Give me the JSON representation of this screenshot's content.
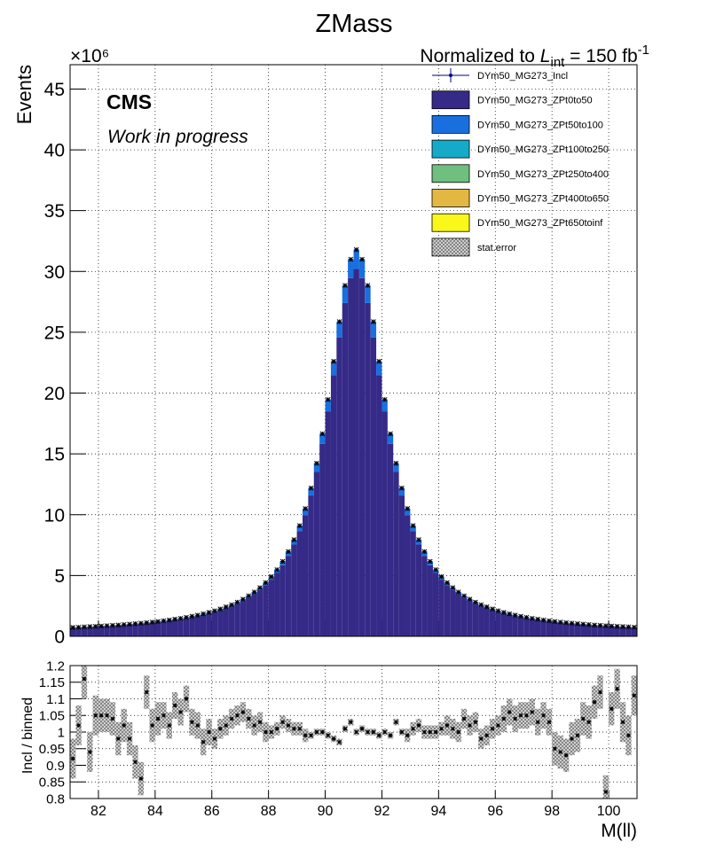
{
  "chart_data": [
    {
      "type": "stacked_histogram",
      "title": "ZMass",
      "y_label": "Events",
      "y_multiplier": "×10⁶",
      "lumi": {
        "prefix": "Normalized to ",
        "symbol": "L",
        "subscript": "int",
        "suffix": " = 150 fb",
        "superscript": "-1"
      },
      "annotations": [
        "CMS",
        "Work in progress"
      ],
      "bins": [
        81,
        81.2,
        81.4,
        81.6,
        81.8,
        82,
        82.2,
        82.4,
        82.6,
        82.8,
        83,
        83.2,
        83.4,
        83.6,
        83.8,
        84,
        84.2,
        84.4,
        84.6,
        84.8,
        85,
        85.2,
        85.4,
        85.6,
        85.8,
        86,
        86.2,
        86.4,
        86.6,
        86.8,
        87,
        87.2,
        87.4,
        87.6,
        87.8,
        88,
        88.2,
        88.4,
        88.6,
        88.8,
        89,
        89.2,
        89.4,
        89.6,
        89.8,
        90,
        90.2,
        90.4,
        90.6,
        90.8,
        91,
        91.2,
        91.4,
        91.6,
        91.8,
        92,
        92.2,
        92.4,
        92.6,
        92.8,
        93,
        93.2,
        93.4,
        93.6,
        93.8,
        94,
        94.2,
        94.4,
        94.6,
        94.8,
        95,
        95.2,
        95.4,
        95.6,
        95.8,
        96,
        96.2,
        96.4,
        96.6,
        96.8,
        97,
        97.2,
        97.4,
        97.6,
        97.8,
        98,
        98.2,
        98.4,
        98.6,
        98.8,
        99,
        99.2,
        99.4,
        99.6,
        99.8,
        100,
        100.2,
        100.4,
        100.6,
        100.8,
        101
      ],
      "xlim": [
        81,
        101
      ],
      "xticks": [
        82,
        84,
        86,
        88,
        90,
        92,
        94,
        96,
        98,
        100
      ],
      "ylim": [
        0,
        47
      ],
      "yticks": [
        0,
        5,
        10,
        15,
        20,
        25,
        30,
        35,
        40,
        45
      ],
      "grid": true,
      "series": [
        {
          "name": "DYm50_MG273_ZPt0to50",
          "color": "#352a87",
          "values": [
            0.69,
            0.71,
            0.74,
            0.76,
            0.78,
            0.81,
            0.83,
            0.85,
            0.88,
            0.92,
            0.95,
            0.99,
            1.03,
            1.06,
            1.11,
            1.16,
            1.22,
            1.27,
            1.34,
            1.41,
            1.48,
            1.57,
            1.65,
            1.76,
            1.87,
            1.99,
            2.14,
            2.3,
            2.47,
            2.67,
            2.9,
            3.16,
            3.46,
            3.8,
            4.2,
            4.66,
            5.21,
            5.85,
            6.62,
            7.54,
            8.64,
            9.97,
            11.58,
            13.52,
            15.82,
            18.5,
            21.48,
            24.58,
            27.41,
            29.45,
            30.2,
            29.45,
            27.41,
            24.58,
            21.48,
            18.5,
            15.82,
            13.52,
            11.58,
            9.97,
            8.64,
            7.54,
            6.62,
            5.85,
            5.21,
            4.66,
            4.2,
            3.8,
            3.46,
            3.16,
            2.9,
            2.67,
            2.47,
            2.3,
            2.14,
            1.99,
            1.87,
            1.76,
            1.65,
            1.57,
            1.48,
            1.41,
            1.34,
            1.27,
            1.22,
            1.16,
            1.11,
            1.06,
            1.03,
            0.99,
            0.95,
            0.92,
            0.88,
            0.85,
            0.83,
            0.81,
            0.78,
            0.76,
            0.74,
            0.71
          ]
        },
        {
          "name": "DYm50_MG273_ZPt50to100",
          "color": "#1a6fdf",
          "values": [
            0.04,
            0.04,
            0.04,
            0.04,
            0.04,
            0.04,
            0.04,
            0.05,
            0.05,
            0.05,
            0.05,
            0.05,
            0.05,
            0.06,
            0.06,
            0.06,
            0.06,
            0.07,
            0.07,
            0.07,
            0.08,
            0.08,
            0.09,
            0.09,
            0.1,
            0.11,
            0.11,
            0.12,
            0.13,
            0.14,
            0.15,
            0.17,
            0.18,
            0.2,
            0.22,
            0.25,
            0.27,
            0.31,
            0.35,
            0.4,
            0.46,
            0.53,
            0.61,
            0.71,
            0.83,
            0.97,
            1.13,
            1.29,
            1.44,
            1.55,
            1.59,
            1.55,
            1.44,
            1.29,
            1.13,
            0.97,
            0.83,
            0.71,
            0.61,
            0.53,
            0.46,
            0.4,
            0.35,
            0.31,
            0.27,
            0.25,
            0.22,
            0.2,
            0.18,
            0.17,
            0.15,
            0.14,
            0.13,
            0.12,
            0.11,
            0.11,
            0.1,
            0.09,
            0.09,
            0.08,
            0.08,
            0.07,
            0.07,
            0.07,
            0.06,
            0.06,
            0.06,
            0.06,
            0.05,
            0.05,
            0.05,
            0.05,
            0.05,
            0.05,
            0.04,
            0.04,
            0.04,
            0.04,
            0.04,
            0.04
          ]
        },
        {
          "name": "DYm50_MG273_ZPt100to250",
          "color": "#14aac8",
          "values": [
            0,
            0,
            0,
            0,
            0,
            0,
            0,
            0,
            0,
            0,
            0,
            0,
            0,
            0,
            0,
            0,
            0,
            0,
            0,
            0,
            0,
            0,
            0,
            0,
            0,
            0,
            0,
            0,
            0,
            0,
            0,
            0,
            0,
            0,
            0,
            0,
            0,
            0,
            0,
            0,
            0,
            0,
            0,
            0,
            0,
            0,
            0,
            0,
            0,
            0,
            0,
            0,
            0,
            0,
            0,
            0,
            0,
            0,
            0,
            0,
            0,
            0,
            0,
            0,
            0,
            0,
            0,
            0,
            0,
            0,
            0,
            0,
            0,
            0,
            0,
            0,
            0,
            0,
            0,
            0,
            0,
            0,
            0,
            0,
            0,
            0,
            0,
            0,
            0,
            0,
            0,
            0,
            0,
            0,
            0,
            0,
            0,
            0,
            0,
            0
          ]
        },
        {
          "name": "DYm50_MG273_ZPt250to400",
          "color": "#6fbf7e",
          "values": [
            0,
            0,
            0,
            0,
            0,
            0,
            0,
            0,
            0,
            0,
            0,
            0,
            0,
            0,
            0,
            0,
            0,
            0,
            0,
            0,
            0,
            0,
            0,
            0,
            0,
            0,
            0,
            0,
            0,
            0,
            0,
            0,
            0,
            0,
            0,
            0,
            0,
            0,
            0,
            0,
            0,
            0,
            0,
            0,
            0,
            0,
            0,
            0,
            0,
            0,
            0,
            0,
            0,
            0,
            0,
            0,
            0,
            0,
            0,
            0,
            0,
            0,
            0,
            0,
            0,
            0,
            0,
            0,
            0,
            0,
            0,
            0,
            0,
            0,
            0,
            0,
            0,
            0,
            0,
            0,
            0,
            0,
            0,
            0,
            0,
            0,
            0,
            0,
            0,
            0,
            0,
            0,
            0,
            0,
            0,
            0,
            0,
            0,
            0,
            0
          ]
        },
        {
          "name": "DYm50_MG273_ZPt400to650",
          "color": "#e2b843",
          "values": [
            0,
            0,
            0,
            0,
            0,
            0,
            0,
            0,
            0,
            0,
            0,
            0,
            0,
            0,
            0,
            0,
            0,
            0,
            0,
            0,
            0,
            0,
            0,
            0,
            0,
            0,
            0,
            0,
            0,
            0,
            0,
            0,
            0,
            0,
            0,
            0,
            0,
            0,
            0,
            0,
            0,
            0,
            0,
            0,
            0,
            0,
            0,
            0,
            0,
            0,
            0,
            0,
            0,
            0,
            0,
            0,
            0,
            0,
            0,
            0,
            0,
            0,
            0,
            0,
            0,
            0,
            0,
            0,
            0,
            0,
            0,
            0,
            0,
            0,
            0,
            0,
            0,
            0,
            0,
            0,
            0,
            0,
            0,
            0,
            0,
            0,
            0,
            0,
            0,
            0,
            0,
            0,
            0,
            0,
            0,
            0,
            0,
            0,
            0,
            0
          ]
        },
        {
          "name": "DYm50_MG273_ZPt650toinf",
          "color": "#f9f81a",
          "values": [
            0,
            0,
            0,
            0,
            0,
            0,
            0,
            0,
            0,
            0,
            0,
            0,
            0,
            0,
            0,
            0,
            0,
            0,
            0,
            0,
            0,
            0,
            0,
            0,
            0,
            0,
            0,
            0,
            0,
            0,
            0,
            0,
            0,
            0,
            0,
            0,
            0,
            0,
            0,
            0,
            0,
            0,
            0,
            0,
            0,
            0,
            0,
            0,
            0,
            0,
            0,
            0,
            0,
            0,
            0,
            0,
            0,
            0,
            0,
            0,
            0,
            0,
            0,
            0,
            0,
            0,
            0,
            0,
            0,
            0,
            0,
            0,
            0,
            0,
            0,
            0,
            0,
            0,
            0,
            0,
            0,
            0,
            0,
            0,
            0,
            0,
            0,
            0,
            0,
            0,
            0,
            0,
            0,
            0,
            0,
            0,
            0,
            0,
            0,
            0
          ]
        }
      ],
      "points": {
        "name": "DYm50_MG273_Incl",
        "color": "#000080",
        "values": [
          0.73,
          0.75,
          0.78,
          0.8,
          0.82,
          0.85,
          0.87,
          0.9,
          0.93,
          0.97,
          1.0,
          1.04,
          1.08,
          1.12,
          1.17,
          1.22,
          1.28,
          1.34,
          1.41,
          1.48,
          1.56,
          1.65,
          1.74,
          1.85,
          1.97,
          2.1,
          2.25,
          2.42,
          2.6,
          2.81,
          3.05,
          3.33,
          3.64,
          4.0,
          4.42,
          4.91,
          5.48,
          6.16,
          6.97,
          7.94,
          9.1,
          10.5,
          12.19,
          14.23,
          16.65,
          19.47,
          22.61,
          25.87,
          28.85,
          31.0,
          31.79,
          31.0,
          28.85,
          25.87,
          22.61,
          19.47,
          16.65,
          14.23,
          12.19,
          10.5,
          9.1,
          7.94,
          6.97,
          6.16,
          5.48,
          4.91,
          4.42,
          4.0,
          3.64,
          3.33,
          3.05,
          2.81,
          2.6,
          2.42,
          2.25,
          2.1,
          1.97,
          1.85,
          1.74,
          1.65,
          1.56,
          1.48,
          1.41,
          1.34,
          1.28,
          1.22,
          1.17,
          1.12,
          1.08,
          1.04,
          1.0,
          0.97,
          0.93,
          0.9,
          0.87,
          0.85,
          0.82,
          0.8,
          0.78,
          0.75
        ]
      },
      "stat_error_label": "stat.error"
    },
    {
      "type": "ratio",
      "y_label": "Incl / binned",
      "x_label": "M(ll)",
      "xlim": [
        81,
        101
      ],
      "xticks": [
        82,
        84,
        86,
        88,
        90,
        92,
        94,
        96,
        98,
        100
      ],
      "ylim": [
        0.8,
        1.2
      ],
      "yticks": [
        0.8,
        0.85,
        0.9,
        0.95,
        1,
        1.05,
        1.1,
        1.15,
        1.2
      ],
      "grid": true,
      "values": [
        0.92,
        1.02,
        1.16,
        0.94,
        1.05,
        1.05,
        1.05,
        1.04,
        0.98,
        1.02,
        0.98,
        0.91,
        0.86,
        1.12,
        1.02,
        1.04,
        1.05,
        1.02,
        1.08,
        1.06,
        1.1,
        1.03,
        1.02,
        0.97,
        1.0,
        0.98,
        1.01,
        1.02,
        1.04,
        1.05,
        1.06,
        1.04,
        1.02,
        1.03,
        1.0,
        1.0,
        1.01,
        1.03,
        1.02,
        1.01,
        1.01,
        0.99,
        0.99,
        1.0,
        1.0,
        0.99,
        0.98,
        0.97,
        1.01,
        1.03,
        1.0,
        1.01,
        1.0,
        1.0,
        0.99,
        1.0,
        0.99,
        1.03,
        1.0,
        0.99,
        1.01,
        1.02,
        1.0,
        1.0,
        1.0,
        1.01,
        1.02,
        1.01,
        1.0,
        1.04,
        1.02,
        1.03,
        0.98,
        0.99,
        1.01,
        1.02,
        1.04,
        1.06,
        1.04,
        1.05,
        1.05,
        1.06,
        1.03,
        1.05,
        1.03,
        0.95,
        0.94,
        0.93,
        0.98,
        0.99,
        1.04,
        1.03,
        1.09,
        1.12,
        0.82,
        1.07,
        1.13,
        1.03,
        0.99,
        1.11
      ],
      "errors": [
        0.06,
        0.06,
        0.06,
        0.06,
        0.06,
        0.05,
        0.05,
        0.05,
        0.05,
        0.05,
        0.05,
        0.05,
        0.05,
        0.05,
        0.05,
        0.05,
        0.04,
        0.04,
        0.04,
        0.04,
        0.04,
        0.04,
        0.04,
        0.04,
        0.04,
        0.03,
        0.03,
        0.03,
        0.03,
        0.03,
        0.03,
        0.03,
        0.03,
        0.03,
        0.03,
        0.02,
        0.02,
        0.02,
        0.02,
        0.02,
        0.02,
        0.02,
        0.01,
        0.01,
        0.01,
        0.01,
        0.01,
        0.01,
        0.01,
        0.01,
        0.01,
        0.01,
        0.01,
        0.01,
        0.01,
        0.01,
        0.01,
        0.01,
        0.01,
        0.02,
        0.02,
        0.02,
        0.02,
        0.02,
        0.02,
        0.02,
        0.03,
        0.03,
        0.03,
        0.03,
        0.03,
        0.03,
        0.03,
        0.03,
        0.03,
        0.03,
        0.04,
        0.04,
        0.04,
        0.04,
        0.04,
        0.04,
        0.04,
        0.04,
        0.04,
        0.05,
        0.05,
        0.05,
        0.05,
        0.05,
        0.05,
        0.05,
        0.05,
        0.05,
        0.05,
        0.05,
        0.06,
        0.06,
        0.06,
        0.06
      ]
    }
  ]
}
